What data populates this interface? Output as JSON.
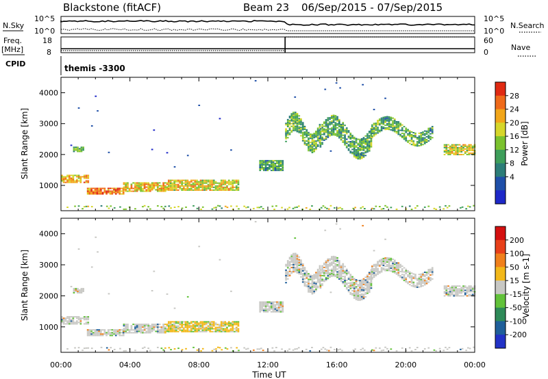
{
  "header": {
    "title": "Blackstone (fitACF)",
    "beam": "Beam 23",
    "date_range": "06/Sep/2015 - 07/Sep/2015"
  },
  "strip": {
    "nsky_label": "N.Sky",
    "nsky_ticks": [
      "10^5",
      "10^0"
    ],
    "nsearch_label": "N.Search",
    "nsearch_ticks": [
      "10^5",
      "10^0"
    ],
    "freq_label": "Freq.",
    "freq_unit": "[MHz]",
    "freq_ticks": [
      "18",
      "8"
    ],
    "nave_label": "Nave",
    "nave_ticks": [
      "60",
      "0"
    ],
    "cpid_label": "CPID",
    "cpid_value": "themis -3300",
    "freq_level": 10.5,
    "nave_step_from": 8,
    "nave_step_to": 60,
    "step_time_h": 13.0
  },
  "chart_data": [
    {
      "type": "heatmap",
      "panel": "power",
      "ylabel": "Slant Range [km]",
      "xlabel": "",
      "ylim": [
        180,
        4500
      ],
      "yticks": [
        "1000",
        "2000",
        "3000",
        "4000"
      ],
      "xlim_hours": [
        0,
        24
      ],
      "colorbar": {
        "label": "Power [dB]",
        "ticks": [
          "28",
          "24",
          "20",
          "16",
          "12",
          "8",
          "4"
        ],
        "colors": [
          "#1e28c8",
          "#1f4fa8",
          "#2c7d78",
          "#3e9e5a",
          "#7bc22e",
          "#d6d62a",
          "#f2a61a",
          "#ef6a1a",
          "#e02a12"
        ]
      },
      "regions": [
        {
          "t0": 0.0,
          "t1": 1.6,
          "r0": 950,
          "r1": 1450,
          "level": 0.75
        },
        {
          "t0": 0.7,
          "t1": 1.3,
          "r0": 2000,
          "r1": 2300,
          "level": 0.4
        },
        {
          "t0": 1.5,
          "t1": 3.6,
          "r0": 600,
          "r1": 1000,
          "level": 0.85
        },
        {
          "t0": 3.6,
          "t1": 6.2,
          "r0": 650,
          "r1": 1200,
          "level": 0.7
        },
        {
          "t0": 6.2,
          "t1": 10.3,
          "r0": 650,
          "r1": 1350,
          "level": 0.65
        },
        {
          "t0": 11.5,
          "t1": 12.9,
          "r0": 1300,
          "r1": 1950,
          "level": 0.35
        },
        {
          "t0": 13.0,
          "t1": 15.0,
          "r0": 2100,
          "r1": 3300,
          "level": 0.45
        },
        {
          "t0": 15.0,
          "t1": 18.0,
          "r0": 1900,
          "r1": 3200,
          "level": 0.4
        },
        {
          "t0": 18.0,
          "t1": 21.5,
          "r0": 2300,
          "r1": 3200,
          "level": 0.4
        },
        {
          "t0": 22.2,
          "t1": 24.0,
          "r0": 1800,
          "r1": 2500,
          "level": 0.6
        }
      ]
    },
    {
      "type": "heatmap",
      "panel": "velocity",
      "ylabel": "Slant Range [km]",
      "xlabel": "Time UT",
      "ylim": [
        180,
        4500
      ],
      "yticks": [
        "1000",
        "2000",
        "3000",
        "4000"
      ],
      "xticks": [
        "00:00",
        "04:00",
        "08:00",
        "12:00",
        "16:00",
        "20:00",
        "00:00"
      ],
      "xlim_hours": [
        0,
        24
      ],
      "colorbar": {
        "label": "Velocity [m s-1]",
        "ticks": [
          "200",
          "100",
          "50",
          "15",
          "-15",
          "-50",
          "-100",
          "-200"
        ],
        "colors": [
          "#2232c6",
          "#1f5f9a",
          "#2e8a58",
          "#62c23a",
          "#c8c8c4",
          "#f2b81a",
          "#f0801c",
          "#e8401a",
          "#d41010"
        ]
      }
    }
  ]
}
